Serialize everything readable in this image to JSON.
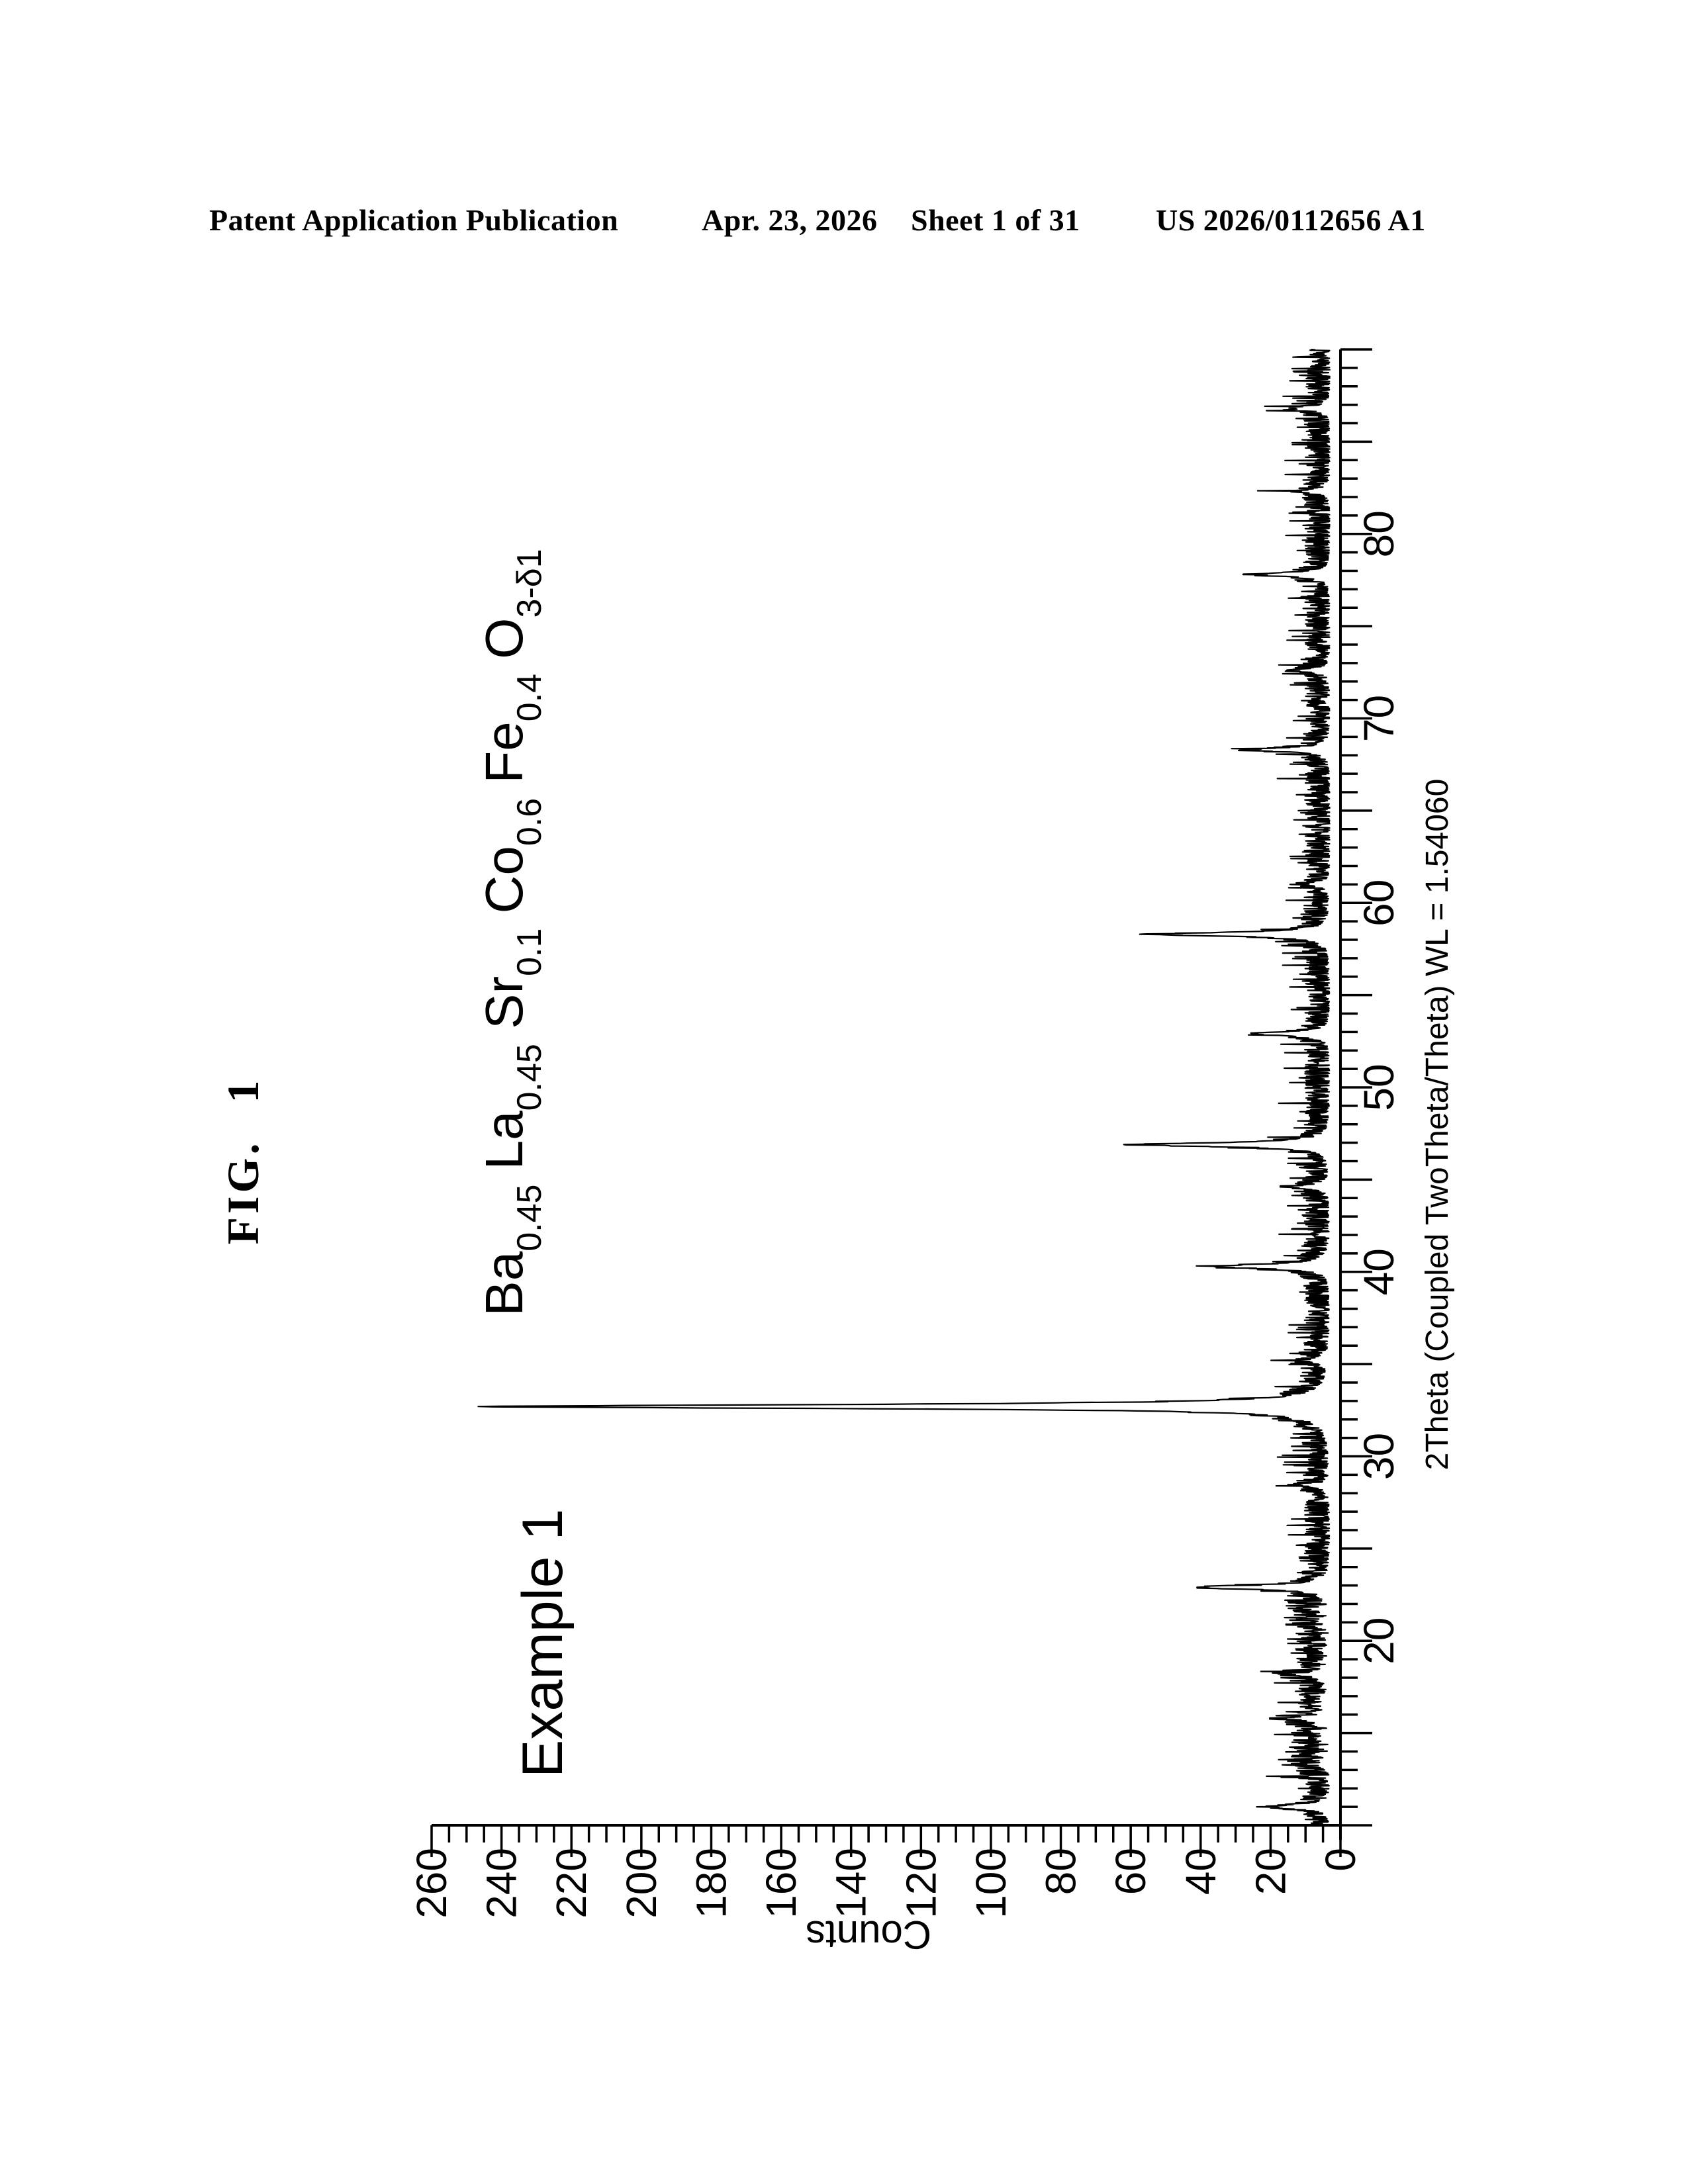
{
  "header": {
    "left": "Patent Application Publication",
    "date": "Apr. 23, 2026",
    "sheet": "Sheet 1 of 31",
    "patent_number": "US 2026/0112656 A1"
  },
  "figure_label": "FIG. 1",
  "chart_data": {
    "type": "line",
    "kind": "xrd-pattern",
    "orientation": "rotated-90-ccw-on-page",
    "title_segments": [
      [
        "Ba",
        "0.45"
      ],
      [
        "La",
        "0.45"
      ],
      [
        "Sr",
        "0.1"
      ],
      [
        "Co",
        "0.6"
      ],
      [
        "Fe",
        "0.4"
      ],
      [
        "O",
        "3-δ1"
      ]
    ],
    "annotation": "Example 1",
    "xlabel": "2Theta (Coupled TwoTheta/Theta) WL = 1.54060",
    "ylabel": "Counts",
    "xlim": [
      10,
      90
    ],
    "ylim": [
      0,
      260
    ],
    "x_tick_labels": [
      20,
      30,
      40,
      50,
      60,
      70,
      80
    ],
    "x_tick_minor_step": 1,
    "x_tick_medium_step": 5,
    "y_tick_labels": [
      0,
      20,
      40,
      60,
      80,
      100,
      120,
      140,
      160,
      180,
      200,
      220,
      240,
      260
    ],
    "y_tick_minor_step": 5,
    "y_tick_label_step": 20,
    "line_color": "#000000",
    "peaks": [
      [
        11.0,
        16
      ],
      [
        15.8,
        9
      ],
      [
        18.2,
        8
      ],
      [
        22.9,
        36
      ],
      [
        28.4,
        6
      ],
      [
        32.7,
        236
      ],
      [
        35.2,
        6
      ],
      [
        40.3,
        32
      ],
      [
        44.6,
        10
      ],
      [
        46.9,
        52
      ],
      [
        52.9,
        20
      ],
      [
        58.3,
        47
      ],
      [
        61.0,
        6
      ],
      [
        68.3,
        20
      ],
      [
        72.6,
        8
      ],
      [
        77.8,
        19
      ],
      [
        82.3,
        7
      ],
      [
        86.8,
        10
      ]
    ],
    "peak_fwhm": 0.26,
    "noise": {
      "seed": 1337,
      "base": 3,
      "amp": 7,
      "spike_prob": 0.1,
      "spike_amp": 9,
      "band": [
        12.5,
        22.5
      ],
      "band_amp": 5
    },
    "sample_step": 0.02
  }
}
